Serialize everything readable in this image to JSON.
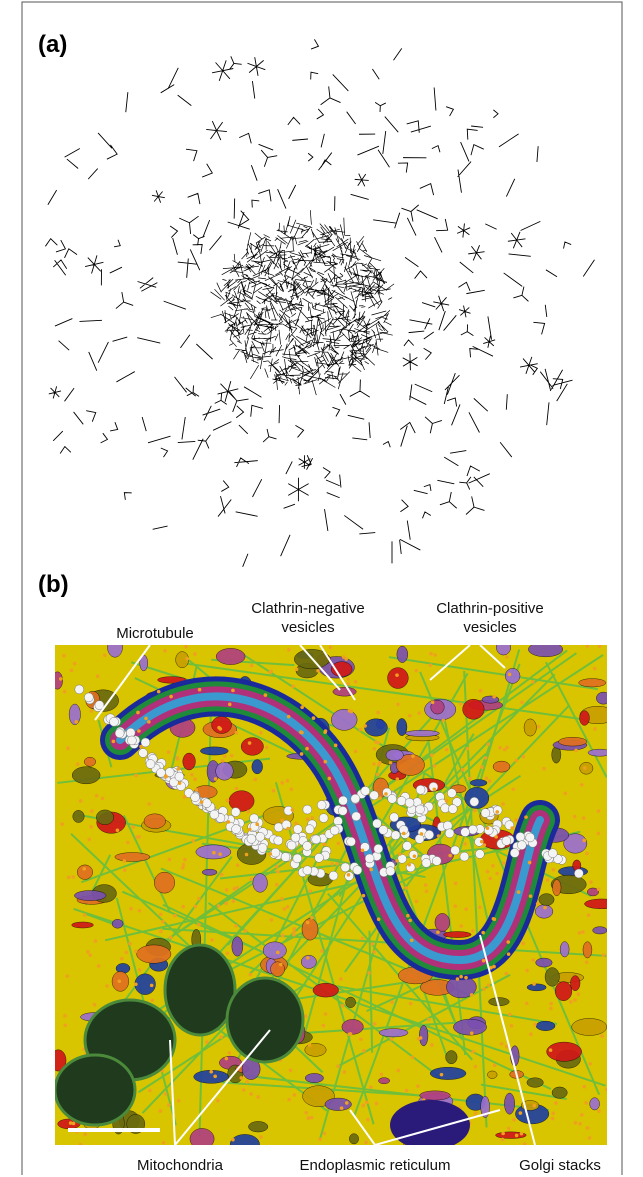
{
  "panels": [
    {
      "label": "(a)"
    },
    {
      "label": "(b)",
      "annotations": [
        {
          "lines": [
            "Microtubule"
          ]
        },
        {
          "lines": [
            "Clathrin-negative",
            "vesicles"
          ]
        },
        {
          "lines": [
            "Clathrin-positive",
            "vesicles"
          ]
        },
        {
          "lines": [
            "Mitochondria"
          ]
        },
        {
          "lines": [
            "Endoplasmic reticulum"
          ]
        },
        {
          "lines": [
            "Golgi stacks"
          ]
        }
      ]
    }
  ]
}
